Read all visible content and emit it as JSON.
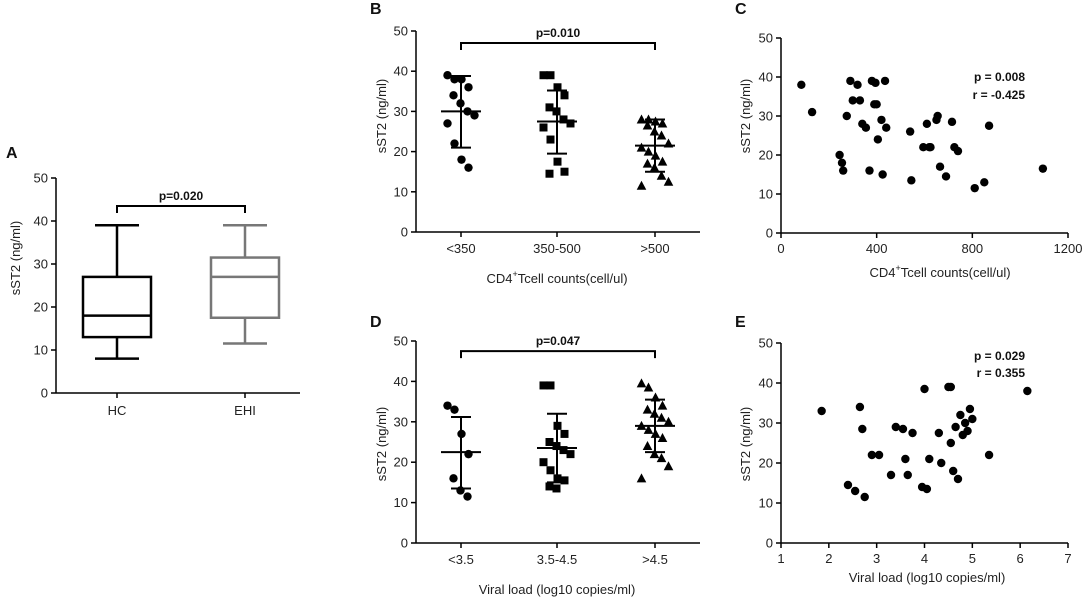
{
  "panels": [
    {
      "id": "A",
      "type": "box",
      "label": "A",
      "ylabel": "sST2 (ng/ml)",
      "ylim": [
        0,
        50
      ],
      "yticks": [
        0,
        10,
        20,
        30,
        40,
        50
      ],
      "categories": [
        "HC",
        "EHI"
      ],
      "boxes": [
        {
          "name": "HC",
          "min": 8,
          "q1": 13,
          "median": 18,
          "q3": 27,
          "max": 39,
          "color": "#000000"
        },
        {
          "name": "EHI",
          "min": 11.5,
          "q1": 17.5,
          "median": 27,
          "q3": 31.5,
          "max": 39,
          "color": "#777777"
        }
      ],
      "bracket": {
        "from": 0,
        "to": 1,
        "y": 43.5,
        "label": "p=0.020"
      }
    },
    {
      "id": "B",
      "type": "dot",
      "label": "B",
      "ylabel": "sST2 (ng/ml)",
      "ylim": [
        0,
        50
      ],
      "yticks": [
        0,
        10,
        20,
        30,
        40,
        50
      ],
      "categories": [
        "<350",
        "350-500",
        ">500"
      ],
      "xlabel_main": "CD4",
      "xlabel_sup": "+",
      "xlabel_rest": "Tcell counts(cell/ul)",
      "groups": [
        {
          "marker": "circle",
          "mean": 30,
          "sd_low": 21,
          "sd_high": 38.8,
          "values": [
            39,
            38,
            38,
            36,
            34,
            32,
            30,
            29,
            27,
            22,
            18,
            16
          ]
        },
        {
          "marker": "square",
          "mean": 27.5,
          "sd_low": 19.5,
          "sd_high": 35.2,
          "values": [
            39,
            39,
            36,
            34,
            31,
            30,
            28,
            27,
            26,
            23,
            17.5,
            15,
            14.5
          ]
        },
        {
          "marker": "triangle",
          "mean": 21.5,
          "sd_low": 15,
          "sd_high": 28,
          "values": [
            28,
            28,
            27.5,
            27,
            26.5,
            25,
            24,
            22,
            21,
            20,
            19,
            17.5,
            17,
            16,
            14,
            12.5,
            11.5
          ]
        }
      ],
      "bracket": {
        "from": 0,
        "to": 2,
        "y": 47,
        "label": "p=0.010"
      }
    },
    {
      "id": "C",
      "type": "scatter",
      "label": "C",
      "ylabel": "sST2 (ng/ml)",
      "ylim": [
        0,
        50
      ],
      "yticks": [
        0,
        10,
        20,
        30,
        40,
        50
      ],
      "xlim": [
        0,
        1200
      ],
      "xticks": [
        0,
        400,
        800,
        1200
      ],
      "xlabel_main": "CD4",
      "xlabel_sup": "+",
      "xlabel_rest": "Tcell counts(cell/ul)",
      "stats": [
        "p = 0.008",
        "r = -0.425"
      ],
      "x": [
        85,
        130,
        245,
        255,
        260,
        275,
        290,
        300,
        320,
        330,
        340,
        355,
        370,
        380,
        390,
        395,
        400,
        405,
        420,
        425,
        435,
        440,
        540,
        545,
        595,
        610,
        620,
        625,
        650,
        655,
        665,
        690,
        715,
        725,
        740,
        810,
        850,
        870,
        1095
      ],
      "y": [
        38,
        31,
        20,
        18,
        16,
        30,
        39,
        34,
        38,
        34,
        28,
        27,
        16,
        39,
        33,
        38.5,
        33,
        24,
        29,
        15,
        39,
        27,
        26,
        13.5,
        22,
        28,
        22,
        22,
        29,
        30,
        17,
        14.5,
        28.5,
        22,
        21,
        11.5,
        13,
        27.5,
        16.5
      ]
    },
    {
      "id": "D",
      "type": "dot",
      "label": "D",
      "ylabel": "sST2 (ng/ml)",
      "ylim": [
        0,
        50
      ],
      "yticks": [
        0,
        10,
        20,
        30,
        40,
        50
      ],
      "categories": [
        "<3.5",
        "3.5-4.5",
        ">4.5"
      ],
      "xlabel_main": "Viral load (log10 copies/ml)",
      "xlabel_sup": "",
      "xlabel_rest": "",
      "groups": [
        {
          "marker": "circle",
          "mean": 22.5,
          "sd_low": 13.5,
          "sd_high": 31.2,
          "values": [
            34,
            33,
            27,
            22,
            16,
            13,
            11.5
          ]
        },
        {
          "marker": "square",
          "mean": 23.5,
          "sd_low": 15,
          "sd_high": 32,
          "values": [
            39,
            39,
            29,
            27,
            25,
            24,
            23,
            22,
            20,
            18,
            16,
            15.5,
            14,
            13.5
          ]
        },
        {
          "marker": "triangle",
          "mean": 29,
          "sd_low": 22.5,
          "sd_high": 35.5,
          "values": [
            39.5,
            38.5,
            36,
            34,
            33,
            32,
            31,
            30,
            29,
            28,
            27,
            26,
            24,
            22,
            21,
            19,
            16
          ]
        }
      ],
      "bracket": {
        "from": 0,
        "to": 2,
        "y": 47.5,
        "label": "p=0.047"
      }
    },
    {
      "id": "E",
      "type": "scatter",
      "label": "E",
      "ylabel": "sST2 (ng/ml)",
      "ylim": [
        0,
        50
      ],
      "yticks": [
        0,
        10,
        20,
        30,
        40,
        50
      ],
      "xlim": [
        1,
        7
      ],
      "xticks": [
        1,
        2,
        3,
        4,
        5,
        6,
        7
      ],
      "xlabel_main": "Viral load (log10 copies/ml)",
      "xlabel_sup": "",
      "xlabel_rest": "",
      "stats": [
        "p = 0.029",
        "r = 0.355"
      ],
      "x": [
        1.85,
        2.4,
        2.55,
        2.65,
        2.7,
        2.75,
        2.9,
        3.05,
        3.3,
        3.4,
        3.55,
        3.6,
        3.65,
        3.75,
        3.95,
        4.0,
        4.05,
        4.1,
        4.3,
        4.35,
        4.5,
        4.55,
        4.55,
        4.6,
        4.65,
        4.7,
        4.75,
        4.8,
        4.85,
        4.9,
        4.95,
        5.0,
        5.35,
        6.15
      ],
      "y": [
        33,
        14.5,
        13,
        34,
        28.5,
        11.5,
        22,
        22,
        17,
        29,
        28.5,
        21,
        17,
        27.5,
        14,
        38.5,
        13.5,
        21,
        27.5,
        20,
        39,
        39,
        25,
        18,
        29,
        16,
        32,
        27,
        30,
        28,
        33.5,
        31,
        22,
        38
      ]
    }
  ]
}
